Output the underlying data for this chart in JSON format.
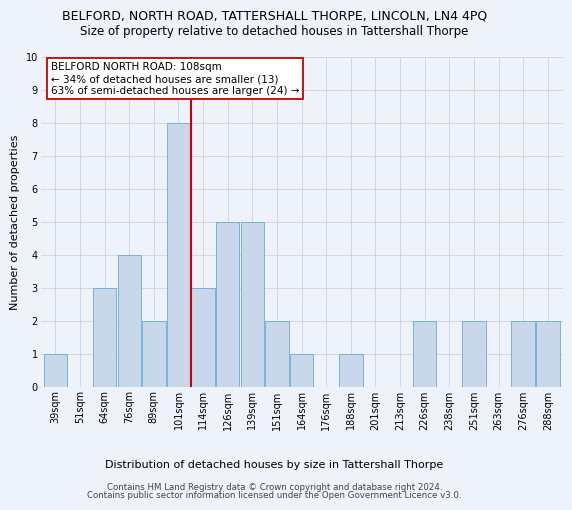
{
  "title": "BELFORD, NORTH ROAD, TATTERSHALL THORPE, LINCOLN, LN4 4PQ",
  "subtitle": "Size of property relative to detached houses in Tattershall Thorpe",
  "xlabel": "Distribution of detached houses by size in Tattershall Thorpe",
  "ylabel": "Number of detached properties",
  "footer1": "Contains HM Land Registry data © Crown copyright and database right 2024.",
  "footer2": "Contains public sector information licensed under the Open Government Licence v3.0.",
  "annotation_title": "BELFORD NORTH ROAD: 108sqm",
  "annotation_line1": "← 34% of detached houses are smaller (13)",
  "annotation_line2": "63% of semi-detached houses are larger (24) →",
  "categories": [
    "39sqm",
    "51sqm",
    "64sqm",
    "76sqm",
    "89sqm",
    "101sqm",
    "114sqm",
    "126sqm",
    "139sqm",
    "151sqm",
    "164sqm",
    "176sqm",
    "188sqm",
    "201sqm",
    "213sqm",
    "226sqm",
    "238sqm",
    "251sqm",
    "263sqm",
    "276sqm",
    "288sqm"
  ],
  "values": [
    1,
    0,
    3,
    4,
    2,
    8,
    3,
    5,
    5,
    2,
    1,
    0,
    1,
    0,
    0,
    2,
    0,
    2,
    0,
    2,
    2
  ],
  "bar_color": "#c8d8ea",
  "bar_edge_color": "#6aaad4",
  "vline_x_index": 5.5,
  "vline_color": "#cc0000",
  "ylim": [
    0,
    10
  ],
  "yticks": [
    0,
    1,
    2,
    3,
    4,
    5,
    6,
    7,
    8,
    9,
    10
  ],
  "grid_color": "#cccccc",
  "background_color": "#eef2fb",
  "annotation_box_color": "#ffffff",
  "annotation_box_edge": "#cc0000",
  "title_fontsize": 9,
  "subtitle_fontsize": 8.5,
  "axis_label_fontsize": 8,
  "ylabel_fontsize": 8,
  "tick_fontsize": 7,
  "annotation_fontsize": 7.5,
  "footer_fontsize": 6.2
}
